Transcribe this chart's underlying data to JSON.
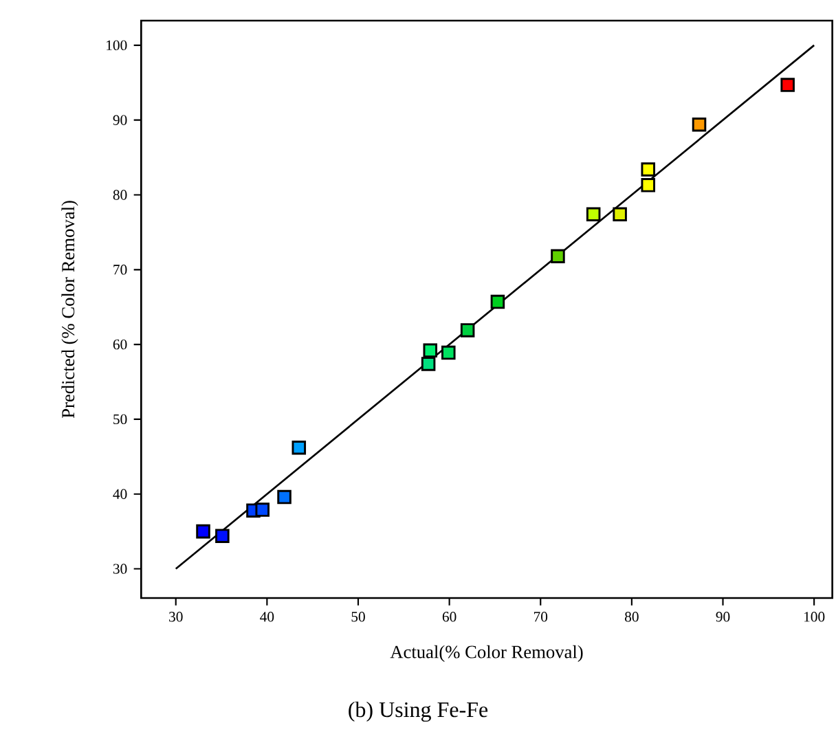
{
  "chart_data": {
    "type": "scatter",
    "title": "(b) Using Fe-Fe",
    "xlabel": "Actual(% Color Removal)",
    "ylabel": "Predicted (% Color Removal)",
    "xlim": [
      26.2,
      102
    ],
    "ylim": [
      26.1,
      103.3
    ],
    "xticks": [
      30,
      40,
      50,
      60,
      70,
      80,
      90,
      100
    ],
    "yticks": [
      30,
      40,
      50,
      60,
      70,
      80,
      90,
      100
    ],
    "grid": false,
    "marker": "square",
    "series": [
      {
        "x": [
          33.0,
          35.1,
          38.5,
          39.5,
          41.9,
          43.5,
          57.7,
          57.9,
          59.9,
          62.0,
          65.3,
          71.9,
          75.8,
          78.7,
          81.8,
          81.8,
          87.4,
          97.1
        ],
        "values": [
          35.0,
          34.4,
          37.8,
          37.9,
          39.6,
          46.2,
          57.4,
          59.2,
          58.9,
          61.9,
          65.7,
          71.8,
          77.4,
          77.4,
          81.3,
          83.4,
          89.4,
          94.7
        ],
        "colors": [
          "#0000ff",
          "#0010ff",
          "#0040ff",
          "#0048ff",
          "#0070ff",
          "#00a0ff",
          "#00e080",
          "#00f070",
          "#00e060",
          "#00d040",
          "#00d020",
          "#60d000",
          "#c0ff00",
          "#e0f000",
          "#ffff00",
          "#ffff00",
          "#ff9900",
          "#ff0000"
        ]
      },
      {
        "type": "line",
        "marker": "none",
        "color": "#000000",
        "x": [
          30,
          100
        ],
        "values": [
          30,
          100
        ]
      }
    ]
  }
}
